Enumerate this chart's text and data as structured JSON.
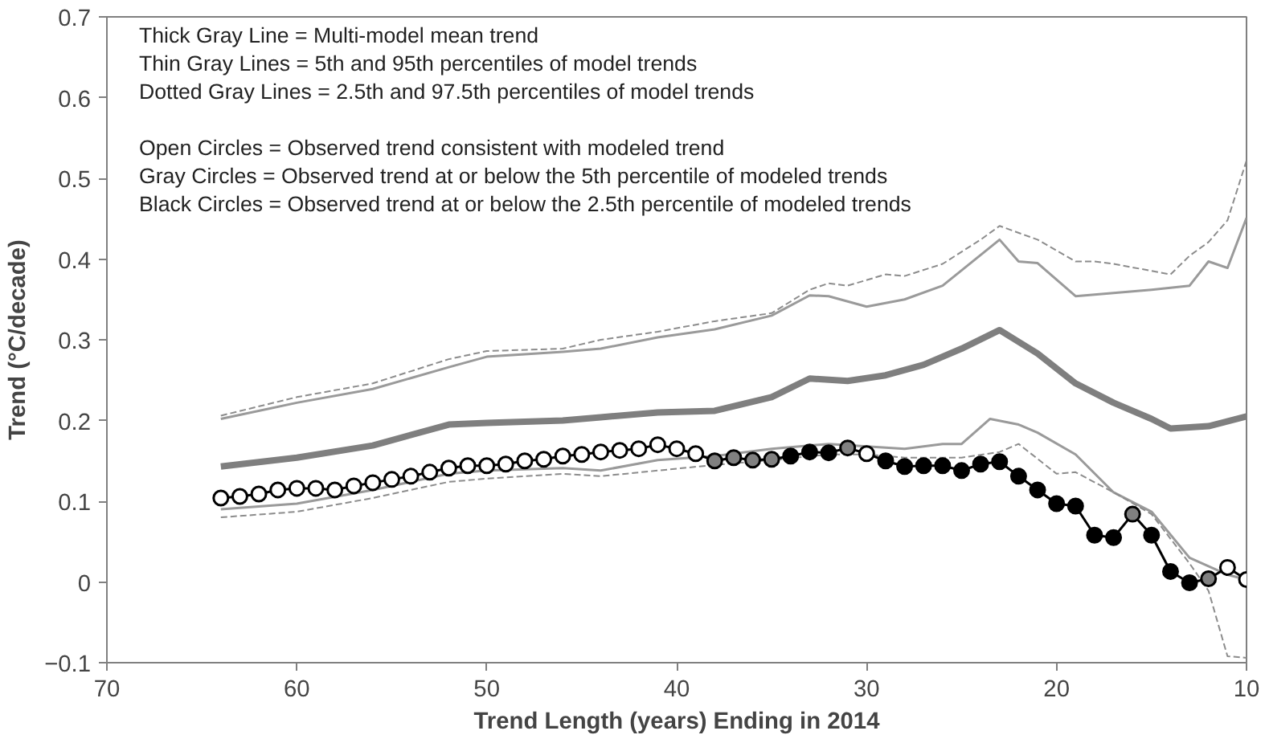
{
  "chart_data": {
    "type": "line",
    "xlabel": "Trend Length (years) Ending in 2014",
    "ylabel": "Trend (°C/decade)",
    "xlim": [
      70,
      10
    ],
    "ylim": [
      -0.1,
      0.7
    ],
    "xticks": [
      70,
      60,
      50,
      40,
      30,
      20,
      10
    ],
    "yticks": [
      -0.1,
      {
        "value": 0,
        "label": "0"
      },
      0.1,
      0.2,
      0.3,
      0.4,
      0.5,
      0.6,
      0.7
    ],
    "grid": false,
    "annotations": [
      "Thick Gray Line = Multi-model mean trend",
      "Thin Gray Lines = 5th and 95th percentiles of model trends",
      "Dotted Gray Lines = 2.5th and 97.5th percentiles of model trends",
      "Open Circles = Observed trend consistent with modeled trend",
      "Gray Circles = Observed trend at or below the 5th percentile of modeled trends",
      "Black Circles = Observed trend at or below the 2.5th percentile of modeled trends"
    ],
    "series": [
      {
        "color": "#8c8c8c",
        "line_style": "dashed",
        "marker": "none",
        "x": [
          64,
          60,
          56,
          52,
          50,
          46,
          44,
          41,
          38,
          35,
          33,
          32,
          31,
          29,
          28,
          26,
          24,
          23,
          21,
          19,
          18,
          17,
          14,
          13,
          12,
          11,
          10
        ],
        "values": [
          0.206,
          0.229,
          0.246,
          0.276,
          0.286,
          0.289,
          0.3,
          0.31,
          0.323,
          0.333,
          0.362,
          0.37,
          0.367,
          0.381,
          0.379,
          0.394,
          0.424,
          0.441,
          0.424,
          0.397,
          0.397,
          0.394,
          0.381,
          0.404,
          0.421,
          0.448,
          0.522
        ]
      },
      {
        "color": "#9a9a9a",
        "line_style": "solid",
        "marker": "none",
        "x": [
          64,
          60,
          56,
          52,
          50,
          46,
          44,
          41,
          38,
          35,
          33,
          32,
          30,
          28,
          26,
          23,
          22,
          21,
          19,
          15,
          13,
          12,
          11,
          10
        ],
        "values": [
          0.202,
          0.222,
          0.239,
          0.266,
          0.279,
          0.285,
          0.289,
          0.303,
          0.313,
          0.33,
          0.355,
          0.354,
          0.341,
          0.35,
          0.367,
          0.424,
          0.397,
          0.395,
          0.354,
          0.362,
          0.367,
          0.397,
          0.389,
          0.451
        ]
      },
      {
        "color": "#7f7f7f",
        "line_style": "solid",
        "marker": "none",
        "x": [
          64,
          60,
          56,
          52,
          50,
          46,
          44,
          41,
          38,
          35,
          33,
          31,
          29,
          27,
          25,
          23,
          21,
          19,
          17,
          15,
          14,
          12,
          10
        ],
        "values": [
          0.143,
          0.154,
          0.169,
          0.195,
          0.197,
          0.2,
          0.204,
          0.21,
          0.212,
          0.229,
          0.252,
          0.249,
          0.256,
          0.269,
          0.289,
          0.312,
          0.283,
          0.246,
          0.222,
          0.202,
          0.19,
          0.193,
          0.205
        ]
      },
      {
        "color": "#9a9a9a",
        "line_style": "solid",
        "marker": "none",
        "x": [
          64,
          60,
          56,
          52,
          50,
          46,
          44,
          41,
          38,
          35,
          32,
          30,
          28,
          26,
          25,
          23.5,
          22,
          21,
          19,
          17,
          15,
          13,
          11,
          10
        ],
        "values": [
          0.09,
          0.097,
          0.114,
          0.134,
          0.138,
          0.141,
          0.138,
          0.151,
          0.156,
          0.165,
          0.171,
          0.168,
          0.165,
          0.171,
          0.171,
          0.202,
          0.195,
          0.185,
          0.158,
          0.111,
          0.087,
          0.03,
          0.009,
          0.003
        ]
      },
      {
        "color": "#8c8c8c",
        "line_style": "dashed",
        "marker": "none",
        "x": [
          64,
          60,
          56,
          52,
          50,
          46,
          44,
          41,
          38,
          35,
          32,
          30,
          28,
          25,
          23,
          22,
          20,
          19,
          17,
          15,
          13,
          12,
          11,
          10
        ],
        "values": [
          0.08,
          0.087,
          0.104,
          0.124,
          0.128,
          0.134,
          0.131,
          0.138,
          0.145,
          0.151,
          0.158,
          0.158,
          0.154,
          0.154,
          0.161,
          0.171,
          0.134,
          0.136,
          0.111,
          0.084,
          0.023,
          -0.011,
          -0.092,
          -0.094
        ]
      },
      {
        "color": "#000000",
        "line_style": "solid",
        "marker": "circle",
        "x": [
          64,
          63,
          62,
          61,
          60,
          59,
          58,
          57,
          56,
          55,
          54,
          53,
          52,
          51,
          50,
          49,
          48,
          47,
          46,
          45,
          44,
          43,
          42,
          41,
          40,
          39,
          38,
          37,
          36,
          35,
          34,
          33,
          32,
          31,
          30,
          29,
          28,
          27,
          26,
          25,
          24,
          23,
          22,
          21,
          20,
          19,
          18,
          17,
          16,
          15,
          14,
          13,
          12,
          11,
          10
        ],
        "values": [
          0.104,
          0.106,
          0.109,
          0.114,
          0.116,
          0.116,
          0.114,
          0.119,
          0.123,
          0.127,
          0.131,
          0.136,
          0.141,
          0.144,
          0.144,
          0.146,
          0.15,
          0.152,
          0.156,
          0.158,
          0.161,
          0.163,
          0.165,
          0.17,
          0.165,
          0.159,
          0.15,
          0.154,
          0.151,
          0.152,
          0.156,
          0.161,
          0.16,
          0.166,
          0.159,
          0.15,
          0.143,
          0.144,
          0.144,
          0.138,
          0.146,
          0.149,
          0.131,
          0.114,
          0.097,
          0.094,
          0.058,
          0.055,
          0.084,
          0.058,
          0.013,
          -0.001,
          0.004,
          0.018,
          0.003
        ],
        "colors": [
          "#ffffff",
          "#ffffff",
          "#ffffff",
          "#ffffff",
          "#ffffff",
          "#ffffff",
          "#ffffff",
          "#ffffff",
          "#ffffff",
          "#ffffff",
          "#ffffff",
          "#ffffff",
          "#ffffff",
          "#ffffff",
          "#ffffff",
          "#ffffff",
          "#ffffff",
          "#ffffff",
          "#ffffff",
          "#ffffff",
          "#ffffff",
          "#ffffff",
          "#ffffff",
          "#ffffff",
          "#ffffff",
          "#ffffff",
          "#808080",
          "#808080",
          "#808080",
          "#808080",
          "#000000",
          "#000000",
          "#000000",
          "#808080",
          "#ffffff",
          "#000000",
          "#000000",
          "#000000",
          "#000000",
          "#000000",
          "#000000",
          "#000000",
          "#000000",
          "#000000",
          "#000000",
          "#000000",
          "#000000",
          "#000000",
          "#808080",
          "#000000",
          "#000000",
          "#000000",
          "#808080",
          "#ffffff",
          "#ffffff"
        ]
      }
    ]
  }
}
